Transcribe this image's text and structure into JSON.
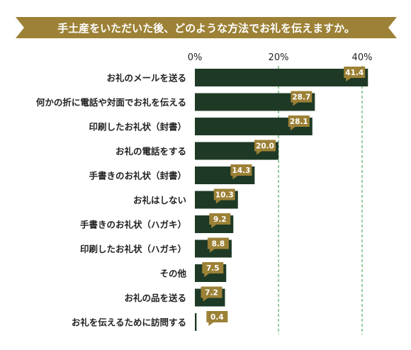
{
  "chart_data": {
    "type": "bar",
    "orientation": "horizontal",
    "title": "手土産をいただいた後、どのような方法でお礼を伝えますか。",
    "categories": [
      "お礼のメールを送る",
      "何かの折に電話や対面でお礼を伝える",
      "印刷したお礼状（封書）",
      "お礼の電話をする",
      "手書きのお礼状（封書）",
      "お礼はしない",
      "手書きのお礼状（ハガキ）",
      "印刷したお礼状（ハガキ）",
      "その他",
      "お礼の品を送る",
      "お礼を伝えるために訪問する"
    ],
    "values": [
      41.4,
      28.7,
      28.1,
      20.0,
      14.3,
      10.3,
      9.2,
      8.8,
      7.5,
      7.2,
      0.4
    ],
    "value_labels": [
      "41.4",
      "28.7",
      "28.1",
      "20.0",
      "14.3",
      "10.3",
      "9.2",
      "8.8",
      "7.5",
      "7.2",
      "0.4"
    ],
    "xlim": [
      0,
      50
    ],
    "x_ticks": [
      0,
      20,
      40
    ],
    "x_tick_labels": [
      "0%",
      "20%",
      "40%"
    ],
    "gridlines": [
      20,
      40
    ],
    "grid": "dashed-vertical",
    "colors": {
      "bar": "#1e3a26",
      "label_badge": "#9c8136",
      "label_text": "#ffffff",
      "title_bg": "#9c8136",
      "title_text": "#ffffff",
      "gridline": "#2f9a3c",
      "category_text": "#222222",
      "tick_text": "#222222"
    }
  }
}
